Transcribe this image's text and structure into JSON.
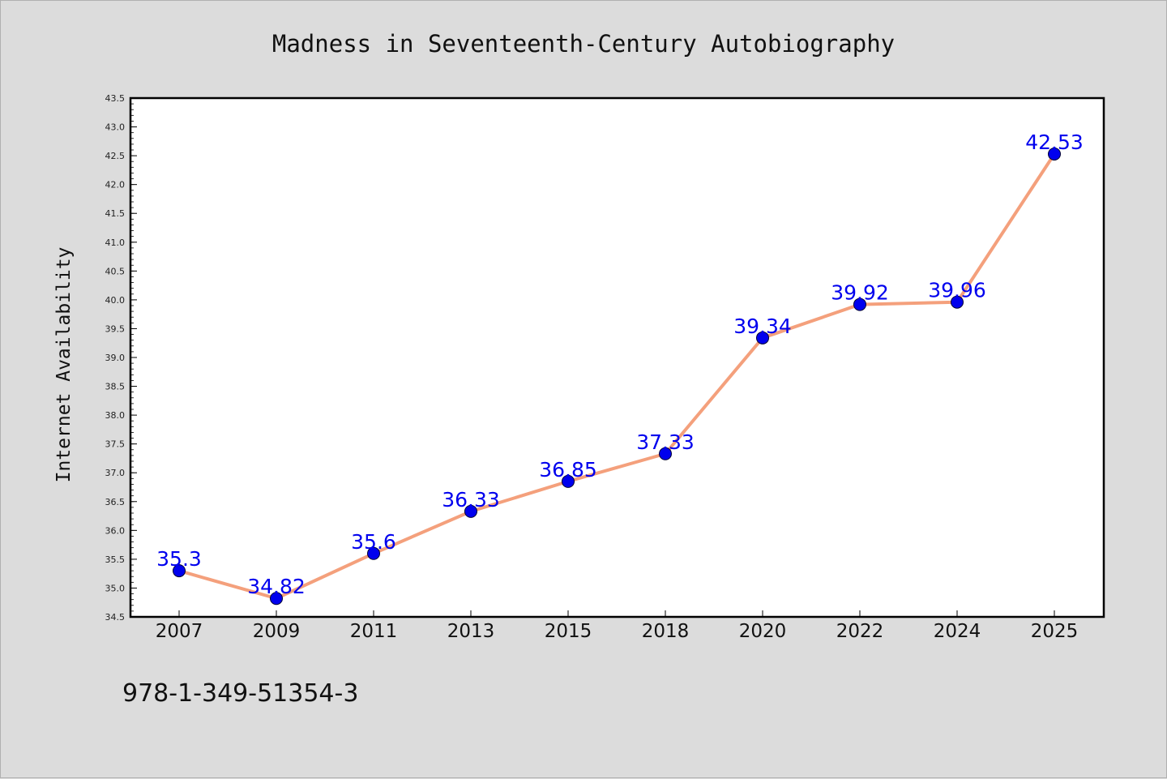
{
  "chart_data": {
    "type": "line",
    "title": "Madness in Seventeenth-Century Autobiography",
    "xlabel": "",
    "ylabel": "Internet Availability",
    "categories": [
      "2007",
      "2009",
      "2011",
      "2013",
      "2015",
      "2018",
      "2020",
      "2022",
      "2024",
      "2025"
    ],
    "series": [
      {
        "values": [
          35.3,
          34.82,
          35.6,
          36.33,
          36.85,
          37.33,
          39.34,
          39.92,
          39.96,
          42.53
        ],
        "labels": [
          "35.3",
          "34.82",
          "35.6",
          "36.33",
          "36.85",
          "37.33",
          "39.34",
          "39.92",
          "39.96",
          "42.53"
        ]
      }
    ],
    "ylim": [
      34.5,
      43.5
    ],
    "yticks": [
      "34.5",
      "35.0",
      "35.5",
      "36.0",
      "36.5",
      "37.0",
      "37.5",
      "38.0",
      "38.5",
      "39.0",
      "39.5",
      "40.0",
      "40.5",
      "41.0",
      "41.5",
      "42.0",
      "42.5",
      "43.0",
      "43.5"
    ],
    "grid": false,
    "line_color": "#f4a07c",
    "marker_color": "#0000ee",
    "label_color": "#0000ee"
  },
  "footer": {
    "isbn": "978-1-349-51354-3"
  }
}
